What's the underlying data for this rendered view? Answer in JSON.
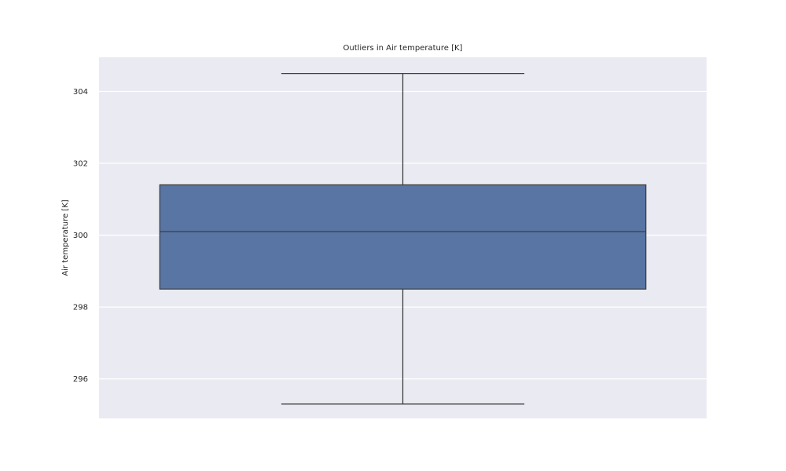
{
  "chart_data": {
    "type": "box",
    "title": "Outliers in Air temperature [K]",
    "xlabel": "",
    "ylabel": "Air temperature [K]",
    "ylim": [
      294.9,
      304.95
    ],
    "yticks": [
      296,
      298,
      300,
      302,
      304
    ],
    "grid": true,
    "box": {
      "whisker_low": 295.3,
      "q1": 298.5,
      "median": 300.1,
      "q3": 301.4,
      "whisker_high": 304.5
    },
    "colors": {
      "background": "#eaeaf2",
      "box_fill": "#5875a4",
      "line": "#3f3f3f",
      "grid": "#ffffff"
    }
  }
}
